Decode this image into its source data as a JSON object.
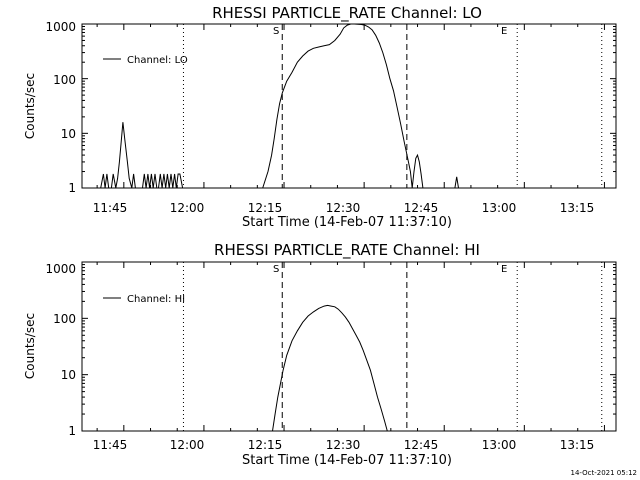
{
  "chart_data": [
    {
      "type": "line",
      "title": "RHESSI PARTICLE_RATE Channel: LO",
      "xlabel": "Start Time (14-Feb-07 11:37:10)",
      "ylabel": "Counts/sec",
      "xlim": [
        "11:37:10",
        "13:17:10"
      ],
      "ylim": [
        1,
        1000
      ],
      "yscale": "log",
      "xticks": [
        "11:45",
        "12:00",
        "12:15",
        "12:30",
        "12:45",
        "13:00",
        "13:15"
      ],
      "yticks": [
        "1",
        "10",
        "100",
        "1000"
      ],
      "grid": false,
      "legend": {
        "placement": "top-left",
        "entries": [
          "Channel: LO"
        ]
      },
      "markers": [
        {
          "label": "S",
          "time": "12:14:40",
          "style": "dashed"
        },
        {
          "label": "",
          "time": "12:38:00",
          "style": "dashed"
        },
        {
          "label": "E",
          "time": "12:58:40",
          "style": "dotted"
        },
        {
          "label": "",
          "time": "11:56:10",
          "style": "dotted"
        },
        {
          "label": "",
          "time": "13:14:30",
          "style": "dotted"
        }
      ],
      "series": [
        {
          "name": "Channel: LO",
          "x": [
            "11:40:40",
            "11:41:10",
            "11:41:30",
            "11:41:50",
            "11:42:10",
            "11:42:40",
            "11:43:00",
            "11:43:30",
            "11:43:50",
            "11:44:10",
            "11:44:30",
            "11:44:50",
            "11:45:10",
            "11:45:40",
            "11:46:00",
            "11:46:30",
            "11:46:50",
            "11:47:10",
            "11:47:30",
            "11:47:50",
            "11:48:10",
            "11:48:30",
            "11:48:50",
            "11:49:10",
            "11:49:30",
            "11:49:50",
            "11:50:10",
            "11:50:30",
            "11:50:50",
            "11:51:10",
            "11:51:30",
            "11:51:50",
            "11:52:10",
            "11:52:30",
            "11:52:50",
            "11:53:10",
            "11:53:30",
            "11:53:50",
            "11:54:10",
            "11:54:30",
            "11:54:50",
            "11:55:10",
            "11:55:30",
            "11:56:00",
            "12:11:00",
            "12:12:00",
            "12:12:40",
            "12:13:10",
            "12:13:40",
            "12:14:10",
            "12:14:40",
            "12:15:30",
            "12:16:30",
            "12:17:30",
            "12:18:30",
            "12:19:30",
            "12:20:30",
            "12:21:30",
            "12:22:30",
            "12:23:30",
            "12:24:30",
            "12:25:30",
            "12:26:10",
            "12:26:50",
            "12:27:30",
            "12:28:10",
            "12:28:50",
            "12:29:30",
            "12:30:10",
            "12:30:50",
            "12:31:30",
            "12:32:10",
            "12:32:50",
            "12:33:30",
            "12:34:10",
            "12:34:50",
            "12:35:30",
            "12:36:10",
            "12:36:50",
            "12:37:30",
            "12:38:10",
            "12:38:40",
            "12:39:00",
            "12:39:20",
            "12:39:40",
            "12:40:00",
            "12:40:20",
            "12:40:40",
            "12:41:00",
            "12:41:20",
            "12:41:40",
            "12:42:00",
            "12:47:00",
            "12:47:20",
            "12:47:40"
          ],
          "y": [
            1,
            1.8,
            1,
            1.8,
            1,
            1,
            1.8,
            1,
            1.5,
            3,
            7,
            16,
            8,
            3,
            1.5,
            1,
            1.8,
            1,
            1,
            1,
            1,
            1,
            1.8,
            1,
            1.8,
            1,
            1.8,
            1,
            1.8,
            1,
            1,
            1.8,
            1,
            1.8,
            1,
            1.8,
            1,
            1.8,
            1,
            1.8,
            1,
            1.8,
            1.8,
            1,
            1,
            2,
            4,
            8,
            18,
            35,
            55,
            90,
            130,
            200,
            260,
            320,
            360,
            380,
            400,
            420,
            500,
            650,
            850,
            950,
            1000,
            1000,
            990,
            980,
            950,
            880,
            780,
            620,
            450,
            300,
            180,
            100,
            60,
            30,
            15,
            7,
            3.5,
            2,
            1,
            2,
            3.5,
            4,
            3,
            1.8,
            1,
            1,
            1,
            1,
            1,
            1.6,
            1
          ]
        }
      ]
    },
    {
      "type": "line",
      "title": "RHESSI PARTICLE_RATE Channel: HI",
      "xlabel": "Start Time (14-Feb-07 11:37:10)",
      "ylabel": "Counts/sec",
      "xlim": [
        "11:37:10",
        "13:17:10"
      ],
      "ylim": [
        1,
        1000
      ],
      "yscale": "log",
      "xticks": [
        "11:45",
        "12:00",
        "12:15",
        "12:30",
        "12:45",
        "13:00",
        "13:15"
      ],
      "yticks": [
        "1",
        "10",
        "100",
        "1000"
      ],
      "grid": false,
      "legend": {
        "placement": "top-left",
        "entries": [
          "Channel: HI"
        ]
      },
      "markers": [
        {
          "label": "S",
          "time": "12:14:40",
          "style": "dashed"
        },
        {
          "label": "",
          "time": "12:38:00",
          "style": "dashed"
        },
        {
          "label": "E",
          "time": "12:58:40",
          "style": "dotted"
        },
        {
          "label": "",
          "time": "11:56:10",
          "style": "dotted"
        },
        {
          "label": "",
          "time": "13:14:30",
          "style": "dotted"
        }
      ],
      "series": [
        {
          "name": "Channel: HI",
          "x": [
            "12:12:50",
            "12:13:20",
            "12:13:50",
            "12:14:20",
            "12:14:50",
            "12:15:30",
            "12:16:30",
            "12:17:30",
            "12:18:30",
            "12:19:30",
            "12:20:30",
            "12:21:30",
            "12:22:30",
            "12:23:10",
            "12:23:50",
            "12:24:30",
            "12:25:10",
            "12:25:50",
            "12:26:30",
            "12:27:10",
            "12:27:50",
            "12:28:30",
            "12:29:10",
            "12:29:50",
            "12:30:30",
            "12:31:10",
            "12:31:50",
            "12:32:30",
            "12:33:10",
            "12:33:50",
            "12:34:20"
          ],
          "y": [
            1,
            2,
            4,
            7,
            12,
            22,
            40,
            60,
            85,
            110,
            130,
            150,
            165,
            170,
            165,
            160,
            145,
            125,
            105,
            85,
            65,
            50,
            38,
            27,
            18,
            12,
            7,
            4,
            2.5,
            1.5,
            1
          ]
        }
      ]
    }
  ],
  "footer": {
    "timestamp": "14-Oct-2021 05:12"
  }
}
